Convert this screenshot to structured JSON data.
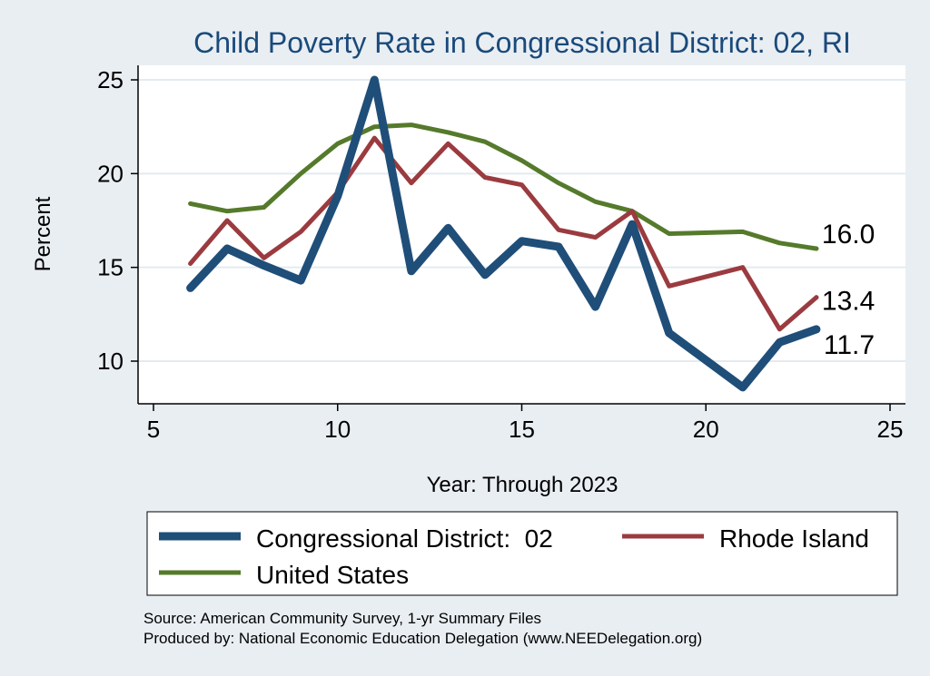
{
  "chart_data": {
    "type": "line",
    "title": "Child Poverty Rate in Congressional District:  02, RI",
    "xlabel": "Year: Through 2023",
    "ylabel": "Percent",
    "xlim": [
      5,
      25
    ],
    "ylim": [
      8,
      26
    ],
    "xticks": [
      5,
      10,
      15,
      20,
      25
    ],
    "yticks": [
      10,
      15,
      20,
      25
    ],
    "grid": true,
    "legend_position": "bottom",
    "series": [
      {
        "name": "Congressional District:  02",
        "color": "#1f4e79",
        "width": 9,
        "points": [
          [
            6,
            13.9
          ],
          [
            7,
            16.0
          ],
          [
            8,
            15.1
          ],
          [
            9,
            14.3
          ],
          [
            10,
            18.8
          ],
          [
            11,
            25.0
          ],
          [
            12,
            14.8
          ],
          [
            13,
            17.1
          ],
          [
            14,
            14.6
          ],
          [
            15,
            16.4
          ],
          [
            16,
            16.1
          ],
          [
            17,
            12.9
          ],
          [
            18,
            17.3
          ],
          [
            19,
            11.5
          ],
          [
            21,
            8.6
          ],
          [
            22,
            11.0
          ],
          [
            23,
            11.7
          ]
        ],
        "end_label": "11.7"
      },
      {
        "name": "Rhode Island",
        "color": "#9b3b3f",
        "width": 5,
        "points": [
          [
            6,
            15.2
          ],
          [
            7,
            17.5
          ],
          [
            8,
            15.5
          ],
          [
            9,
            16.9
          ],
          [
            10,
            19.0
          ],
          [
            11,
            21.9
          ],
          [
            12,
            19.5
          ],
          [
            13,
            21.6
          ],
          [
            14,
            19.8
          ],
          [
            15,
            19.4
          ],
          [
            16,
            17.0
          ],
          [
            17,
            16.6
          ],
          [
            18,
            18.0
          ],
          [
            19,
            14.0
          ],
          [
            21,
            15.0
          ],
          [
            22,
            11.7
          ],
          [
            23,
            13.4
          ]
        ],
        "end_label": "13.4"
      },
      {
        "name": "United States",
        "color": "#557a2b",
        "width": 5,
        "points": [
          [
            6,
            18.4
          ],
          [
            7,
            18.0
          ],
          [
            8,
            18.2
          ],
          [
            9,
            20.0
          ],
          [
            10,
            21.6
          ],
          [
            11,
            22.5
          ],
          [
            12,
            22.6
          ],
          [
            13,
            22.2
          ],
          [
            14,
            21.7
          ],
          [
            15,
            20.7
          ],
          [
            16,
            19.5
          ],
          [
            17,
            18.5
          ],
          [
            18,
            18.0
          ],
          [
            19,
            16.8
          ],
          [
            21,
            16.9
          ],
          [
            22,
            16.3
          ],
          [
            23,
            16.0
          ]
        ],
        "end_label": "16.0"
      }
    ],
    "source_lines": [
      "Source: American Community Survey, 1-yr Summary Files",
      "Produced by: National Economic Education Delegation (www.NEEDelegation.org)"
    ]
  }
}
